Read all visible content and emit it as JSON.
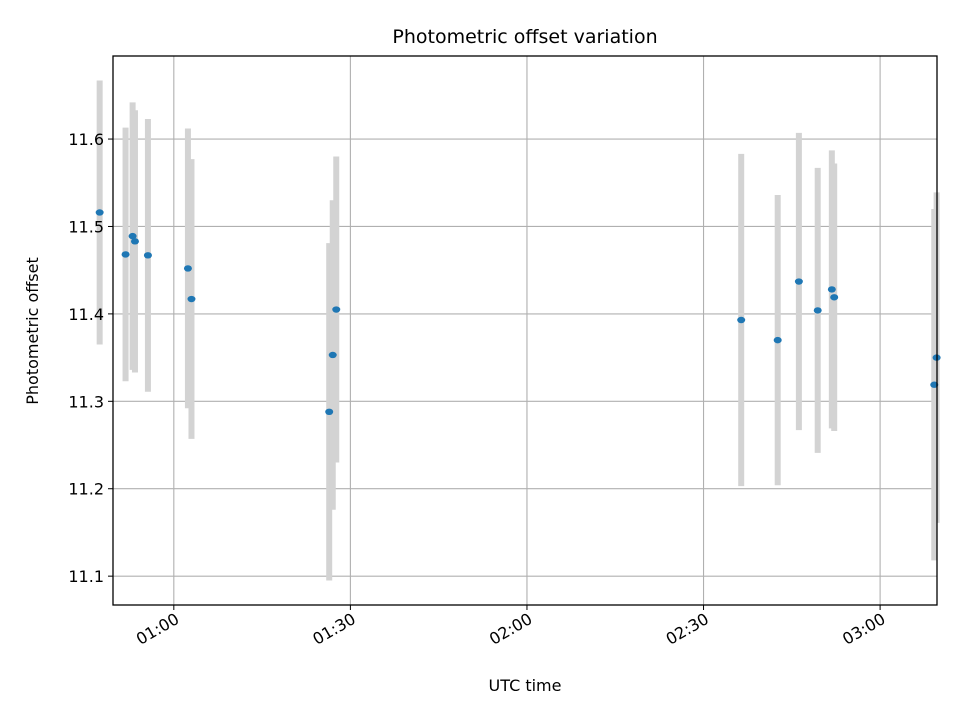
{
  "chart_data": {
    "type": "scatter",
    "title": "Photometric offset variation",
    "xlabel": "UTC time",
    "ylabel": "Photometric offset",
    "x_ticks": [
      "01:00",
      "01:30",
      "02:00",
      "02:30",
      "03:00"
    ],
    "y_ticks": [
      "11.1",
      "11.2",
      "11.3",
      "11.4",
      "11.5",
      "11.6"
    ],
    "xlim": [
      "00:49:40",
      "03:09:40"
    ],
    "ylim": [
      11.067,
      11.695
    ],
    "grid": true,
    "error_bar_color": "#d3d3d3",
    "marker_color": "#1f77b4",
    "points": [
      {
        "x": "00:47:24",
        "y": 11.516,
        "yerr": 0.151
      },
      {
        "x": "00:51:48",
        "y": 11.468,
        "yerr": 0.145
      },
      {
        "x": "00:53:00",
        "y": 11.489,
        "yerr": 0.153
      },
      {
        "x": "00:53:24",
        "y": 11.483,
        "yerr": 0.15
      },
      {
        "x": "00:55:36",
        "y": 11.467,
        "yerr": 0.156
      },
      {
        "x": "01:02:24",
        "y": 11.452,
        "yerr": 0.16
      },
      {
        "x": "01:03:00",
        "y": 11.417,
        "yerr": 0.16
      },
      {
        "x": "01:26:24",
        "y": 11.288,
        "yerr": 0.193
      },
      {
        "x": "01:27:00",
        "y": 11.353,
        "yerr": 0.177
      },
      {
        "x": "01:27:36",
        "y": 11.405,
        "yerr": 0.175
      },
      {
        "x": "02:36:24",
        "y": 11.393,
        "yerr": 0.19
      },
      {
        "x": "02:42:36",
        "y": 11.37,
        "yerr": 0.166
      },
      {
        "x": "02:46:12",
        "y": 11.437,
        "yerr": 0.17
      },
      {
        "x": "02:49:24",
        "y": 11.404,
        "yerr": 0.163
      },
      {
        "x": "02:51:48",
        "y": 11.428,
        "yerr": 0.159
      },
      {
        "x": "02:52:12",
        "y": 11.419,
        "yerr": 0.153
      },
      {
        "x": "03:09:12",
        "y": 11.319,
        "yerr": 0.201
      },
      {
        "x": "03:09:36",
        "y": 11.35,
        "yerr": 0.189
      }
    ]
  }
}
